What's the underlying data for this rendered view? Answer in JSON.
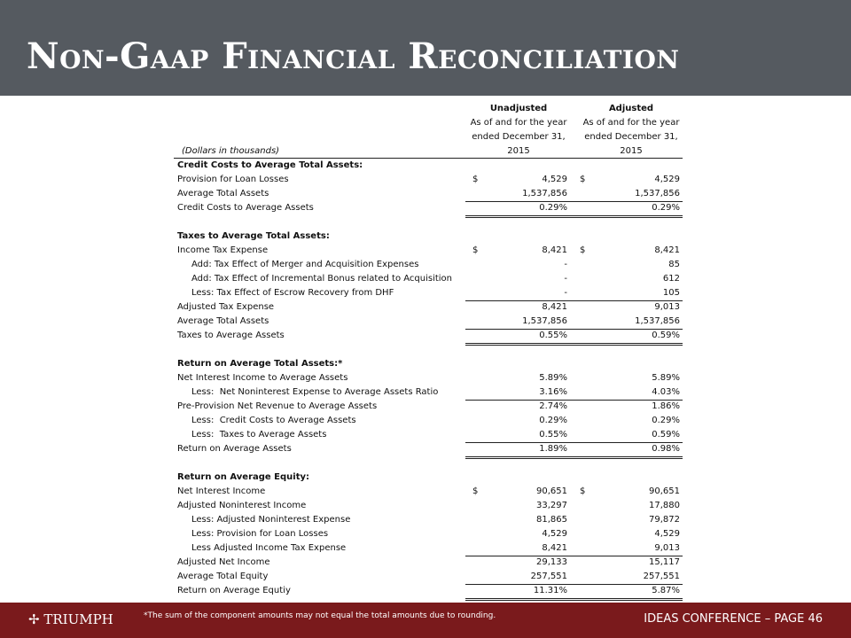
{
  "header": {
    "title": "Non-Gaap Financial Reconciliation"
  },
  "table": {
    "units_note": "(Dollars in thousands)",
    "columns": [
      {
        "title": "Unadjusted",
        "lines": [
          "As of and for the year",
          "ended December 31,",
          "2015"
        ]
      },
      {
        "title": "Adjusted",
        "lines": [
          "As of and for the year",
          "ended December 31,",
          "2015"
        ]
      }
    ],
    "sections": [
      {
        "heading": "Credit Costs to Average Total Assets:",
        "rows": [
          {
            "label": "Provision for Loan Losses",
            "currency": "$",
            "unadjusted": "4,529",
            "adjusted": "4,529"
          },
          {
            "label": "Average Total Assets",
            "unadjusted": "1,537,856",
            "adjusted": "1,537,856"
          },
          {
            "label": "Credit Costs to Average Assets",
            "unadjusted": "0.29%",
            "adjusted": "0.29%"
          }
        ]
      },
      {
        "heading": "Taxes to Average Total Assets:",
        "rows": [
          {
            "label": "Income Tax Expense",
            "currency": "$",
            "unadjusted": "8,421",
            "adjusted": "8,421"
          },
          {
            "label": "Add: Tax Effect of Merger and Acquisition Expenses",
            "unadjusted": "-",
            "adjusted": "85"
          },
          {
            "label": "Add: Tax Effect of Incremental Bonus related to Acquisition",
            "unadjusted": "-",
            "adjusted": "612"
          },
          {
            "label": "Less: Tax Effect of Escrow Recovery from DHF",
            "unadjusted": "-",
            "adjusted": "105"
          },
          {
            "label": "Adjusted Tax Expense",
            "unadjusted": "8,421",
            "adjusted": "9,013"
          },
          {
            "label": "Average Total Assets",
            "unadjusted": "1,537,856",
            "adjusted": "1,537,856"
          },
          {
            "label": "Taxes to Average Assets",
            "unadjusted": "0.55%",
            "adjusted": "0.59%"
          }
        ]
      },
      {
        "heading": "Return on Average Total Assets:*",
        "rows": [
          {
            "label": "Net Interest Income to Average Assets",
            "unadjusted": "5.89%",
            "adjusted": "5.89%"
          },
          {
            "label": "Less:  Net Noninterest Expense to Average Assets Ratio",
            "unadjusted": "3.16%",
            "adjusted": "4.03%"
          },
          {
            "label": "Pre-Provision Net Revenue to Average Assets",
            "unadjusted": "2.74%",
            "adjusted": "1.86%"
          },
          {
            "label": "Less:  Credit Costs to Average Assets",
            "unadjusted": "0.29%",
            "adjusted": "0.29%"
          },
          {
            "label": "Less:  Taxes to Average Assets",
            "unadjusted": "0.55%",
            "adjusted": "0.59%"
          },
          {
            "label": "Return on Average Assets",
            "unadjusted": "1.89%",
            "adjusted": "0.98%"
          }
        ]
      },
      {
        "heading": "Return on Average Equity:",
        "rows": [
          {
            "label": "Net Interest Income",
            "currency": "$",
            "unadjusted": "90,651",
            "adjusted": "90,651"
          },
          {
            "label": "Adjusted Noninterest Income",
            "unadjusted": "33,297",
            "adjusted": "17,880"
          },
          {
            "label": "Less: Adjusted Noninterest Expense",
            "unadjusted": "81,865",
            "adjusted": "79,872"
          },
          {
            "label": "Less: Provision for Loan Losses",
            "unadjusted": "4,529",
            "adjusted": "4,529"
          },
          {
            "label": "Less Adjusted Income Tax Expense",
            "unadjusted": "8,421",
            "adjusted": "9,013"
          },
          {
            "label": "Adjusted Net Income",
            "unadjusted": "29,133",
            "adjusted": "15,117"
          },
          {
            "label": "Average Total Equity",
            "unadjusted": "257,551",
            "adjusted": "257,551"
          },
          {
            "label": "Return on Average Equtiy",
            "unadjusted": "11.31%",
            "adjusted": "5.87%"
          }
        ]
      }
    ]
  },
  "footer": {
    "note": "*The sum of the component amounts may not equal the total amounts due to rounding.",
    "logo": "TRIUMPH",
    "page": "IDEAS CONFERENCE – PAGE 46"
  }
}
